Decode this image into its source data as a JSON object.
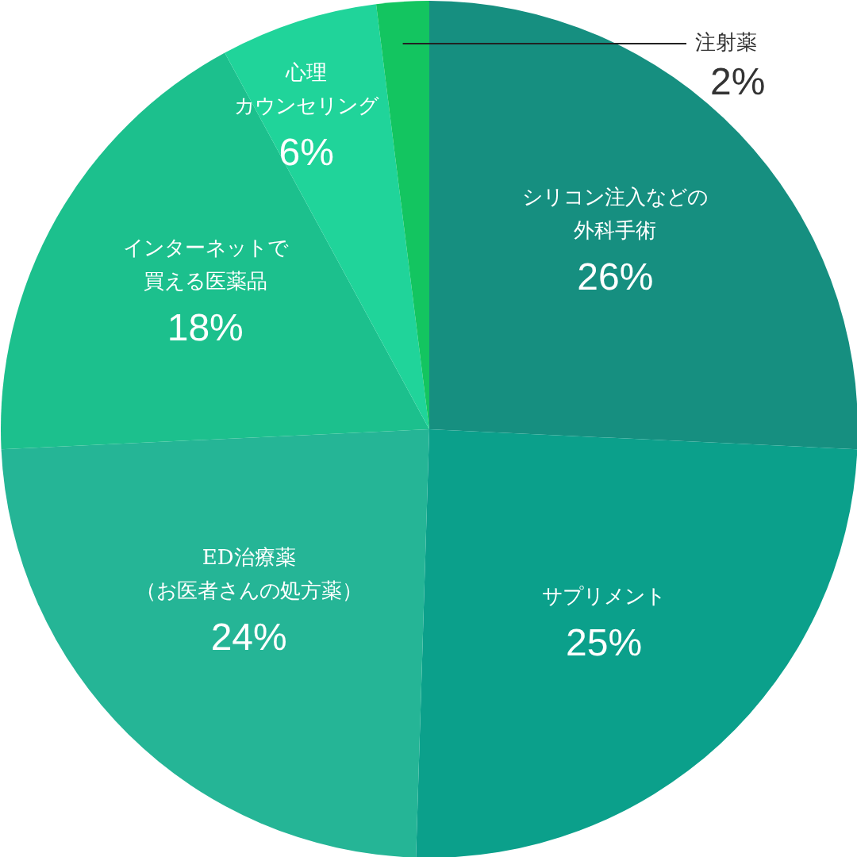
{
  "chart_data": {
    "type": "pie",
    "categories": [
      "シリコン注入などの外科手術",
      "サプリメント",
      "ED治療薬（お医者さんの処方薬）",
      "インターネットで買える医薬品",
      "心理カウンセリング",
      "注射薬"
    ],
    "values": [
      26,
      25,
      24,
      18,
      6,
      2
    ],
    "value_labels": [
      "26%",
      "25%",
      "24%",
      "18%",
      "6%",
      "2%"
    ],
    "colors": [
      "#168f80",
      "#0ba08b",
      "#25b596",
      "#1cc08d",
      "#20d49a",
      "#13c560"
    ]
  }
}
